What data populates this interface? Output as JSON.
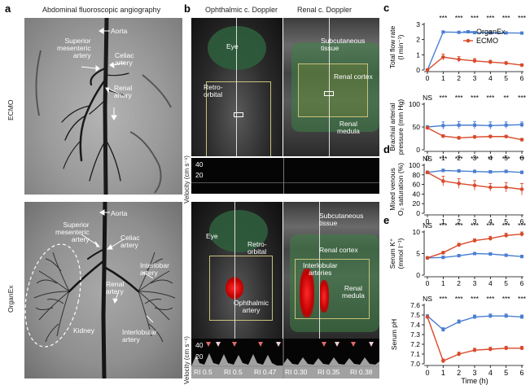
{
  "panel_a": {
    "label": "a",
    "title": "Abdominal fluoroscopic angiography",
    "ecmo": {
      "side_label": "ECMO",
      "annotations": {
        "aorta": "Aorta",
        "sma": "Superior\nmesenteric\nartery",
        "celiac": "Celiac\nartery",
        "renal": "Renal\nartery"
      }
    },
    "organex": {
      "side_label": "OrganEx",
      "annotations": {
        "aorta": "Aorta",
        "sma": "Superior\nmesenteric\nartery",
        "celiac": "Celiac\nartery",
        "interlobar": "Interlobar\nartery",
        "renal": "Renal\nartery",
        "kidney": "Kidney",
        "interlobular": "Interlobular\nartery"
      }
    }
  },
  "panel_b": {
    "label": "b",
    "col1_title": "Ophthalmic c. Doppler",
    "col2_title": "Renal c. Doppler",
    "ecmo": {
      "eye": "Eye",
      "retro": "Retro-\norbital",
      "subq": "Subcutaneous\ntissue",
      "cortex": "Renal cortex",
      "medula": "Renal\nmedula",
      "velocity_axis": "Velocity (cm s⁻¹)",
      "ticks": [
        "40",
        "20"
      ]
    },
    "organex": {
      "eye": "Eye",
      "retro": "Retro-\norbital",
      "ophthalmic": "Ophthalmic\nartery",
      "subq": "Subcutaneous\ntissue",
      "cortex": "Renal cortex",
      "interlobular": "Interlobular\narteries",
      "medula": "Renal\nmedula",
      "velocity_axis": "Velocity (cm s⁻¹)",
      "ticks": [
        "40",
        "20"
      ],
      "ri": [
        "RI 0.5",
        "RI 0.5",
        "RI 0.47",
        "RI 0.30",
        "RI 0.35",
        "RI 0.38"
      ]
    }
  },
  "colors": {
    "organex": "#4a7fd1",
    "ecmo": "#d94a2b"
  },
  "chart_data": [
    {
      "panel": "c",
      "type": "line",
      "ylabel": "Total flow rate\n(l min⁻¹)",
      "ylim": [
        0,
        3
      ],
      "yticks": [
        "0",
        "1",
        "2",
        "3"
      ],
      "x": [
        0,
        1,
        2,
        3,
        4,
        5,
        6
      ],
      "legend_position": "top-right",
      "sig": [
        "***",
        "***",
        "***",
        "***",
        "***",
        "***"
      ],
      "sig_start": 1,
      "series": [
        {
          "name": "OrganEx",
          "values": [
            0,
            2.5,
            2.48,
            2.46,
            2.45,
            2.44,
            2.43
          ],
          "err": [
            0,
            0.05,
            0.05,
            0.05,
            0.05,
            0.05,
            0.05
          ]
        },
        {
          "name": "ECMO",
          "values": [
            0,
            0.85,
            0.7,
            0.6,
            0.52,
            0.45,
            0.32
          ],
          "err": [
            0,
            0.2,
            0.18,
            0.15,
            0.12,
            0.1,
            0.08
          ]
        }
      ]
    },
    {
      "panel": "",
      "type": "line",
      "ylabel": "Brachial arterial\npressure (mm Hg)",
      "ylim": [
        0,
        100
      ],
      "yticks": [
        "0",
        "50",
        "100"
      ],
      "x": [
        0,
        1,
        2,
        3,
        4,
        5,
        6
      ],
      "sig": [
        "NS",
        "***",
        "***",
        "***",
        "***",
        "**",
        "***"
      ],
      "sig_start": 0,
      "series": [
        {
          "name": "OrganEx",
          "values": [
            50,
            53,
            54,
            54,
            53,
            54,
            55
          ],
          "err": [
            3,
            8,
            8,
            8,
            8,
            7,
            6
          ]
        },
        {
          "name": "ECMO",
          "values": [
            48,
            30,
            26,
            28,
            29,
            29,
            22
          ],
          "err": [
            3,
            3,
            3,
            3,
            3,
            3,
            3
          ]
        }
      ]
    },
    {
      "panel": "d",
      "type": "line",
      "ylabel": "Mixed venous\nO₂ saturation (%)",
      "ylim": [
        0,
        100
      ],
      "yticks": [
        "0",
        "20",
        "40",
        "60",
        "80",
        "100"
      ],
      "x": [
        0,
        1,
        2,
        3,
        4,
        5,
        6
      ],
      "sig": [
        "NS",
        "***",
        "***",
        "***",
        "**",
        "***",
        "**"
      ],
      "sig_start": 0,
      "series": [
        {
          "name": "OrganEx",
          "values": [
            85,
            89,
            88,
            87,
            86,
            87,
            85
          ],
          "err": [
            3,
            3,
            3,
            3,
            3,
            3,
            3
          ]
        },
        {
          "name": "ECMO",
          "values": [
            85,
            67,
            62,
            58,
            54,
            54,
            50
          ],
          "err": [
            3,
            10,
            10,
            10,
            8,
            10,
            12
          ]
        }
      ]
    },
    {
      "panel": "e",
      "type": "line",
      "ylabel": "Serum K⁺\n(mmol l⁻¹)",
      "ylim": [
        0,
        10
      ],
      "yticks": [
        "0",
        "5",
        "10"
      ],
      "x": [
        0,
        1,
        2,
        3,
        4,
        5,
        6
      ],
      "sig": [
        "NS",
        "***",
        "***",
        "***",
        "***",
        "***",
        "***"
      ],
      "sig_start": 0,
      "series": [
        {
          "name": "OrganEx",
          "values": [
            4,
            4.1,
            4.5,
            5,
            4.9,
            4.6,
            4.3
          ],
          "err": [
            0.2,
            0.3,
            0.3,
            0.3,
            0.3,
            0.3,
            0.3
          ]
        },
        {
          "name": "ECMO",
          "values": [
            4,
            5.2,
            7,
            8,
            8.5,
            9.2,
            9.5
          ],
          "err": [
            0.2,
            0.3,
            0.4,
            0.4,
            0.5,
            0.5,
            0.5
          ]
        }
      ]
    },
    {
      "panel": "",
      "type": "line",
      "ylabel": "Serum pH",
      "xlabel": "Time (h)",
      "ylim": [
        7.0,
        7.6
      ],
      "yticks": [
        "7.0",
        "7.1",
        "7.2",
        "7.3",
        "7.4",
        "7.5",
        "7.6"
      ],
      "x": [
        0,
        1,
        2,
        3,
        4,
        5,
        6
      ],
      "xticks": [
        "0",
        "1",
        "2",
        "3",
        "4",
        "5",
        "6"
      ],
      "sig": [
        "NS",
        "***",
        "***",
        "***",
        "***",
        "***",
        "***"
      ],
      "sig_start": 0,
      "series": [
        {
          "name": "OrganEx",
          "values": [
            7.49,
            7.35,
            7.43,
            7.48,
            7.49,
            7.49,
            7.48
          ],
          "err": [
            0.01,
            0.02,
            0.02,
            0.02,
            0.02,
            0.02,
            0.02
          ]
        },
        {
          "name": "ECMO",
          "values": [
            7.48,
            7.03,
            7.1,
            7.14,
            7.15,
            7.16,
            7.16
          ],
          "err": [
            0.01,
            0.02,
            0.02,
            0.02,
            0.02,
            0.02,
            0.02
          ]
        }
      ]
    }
  ]
}
